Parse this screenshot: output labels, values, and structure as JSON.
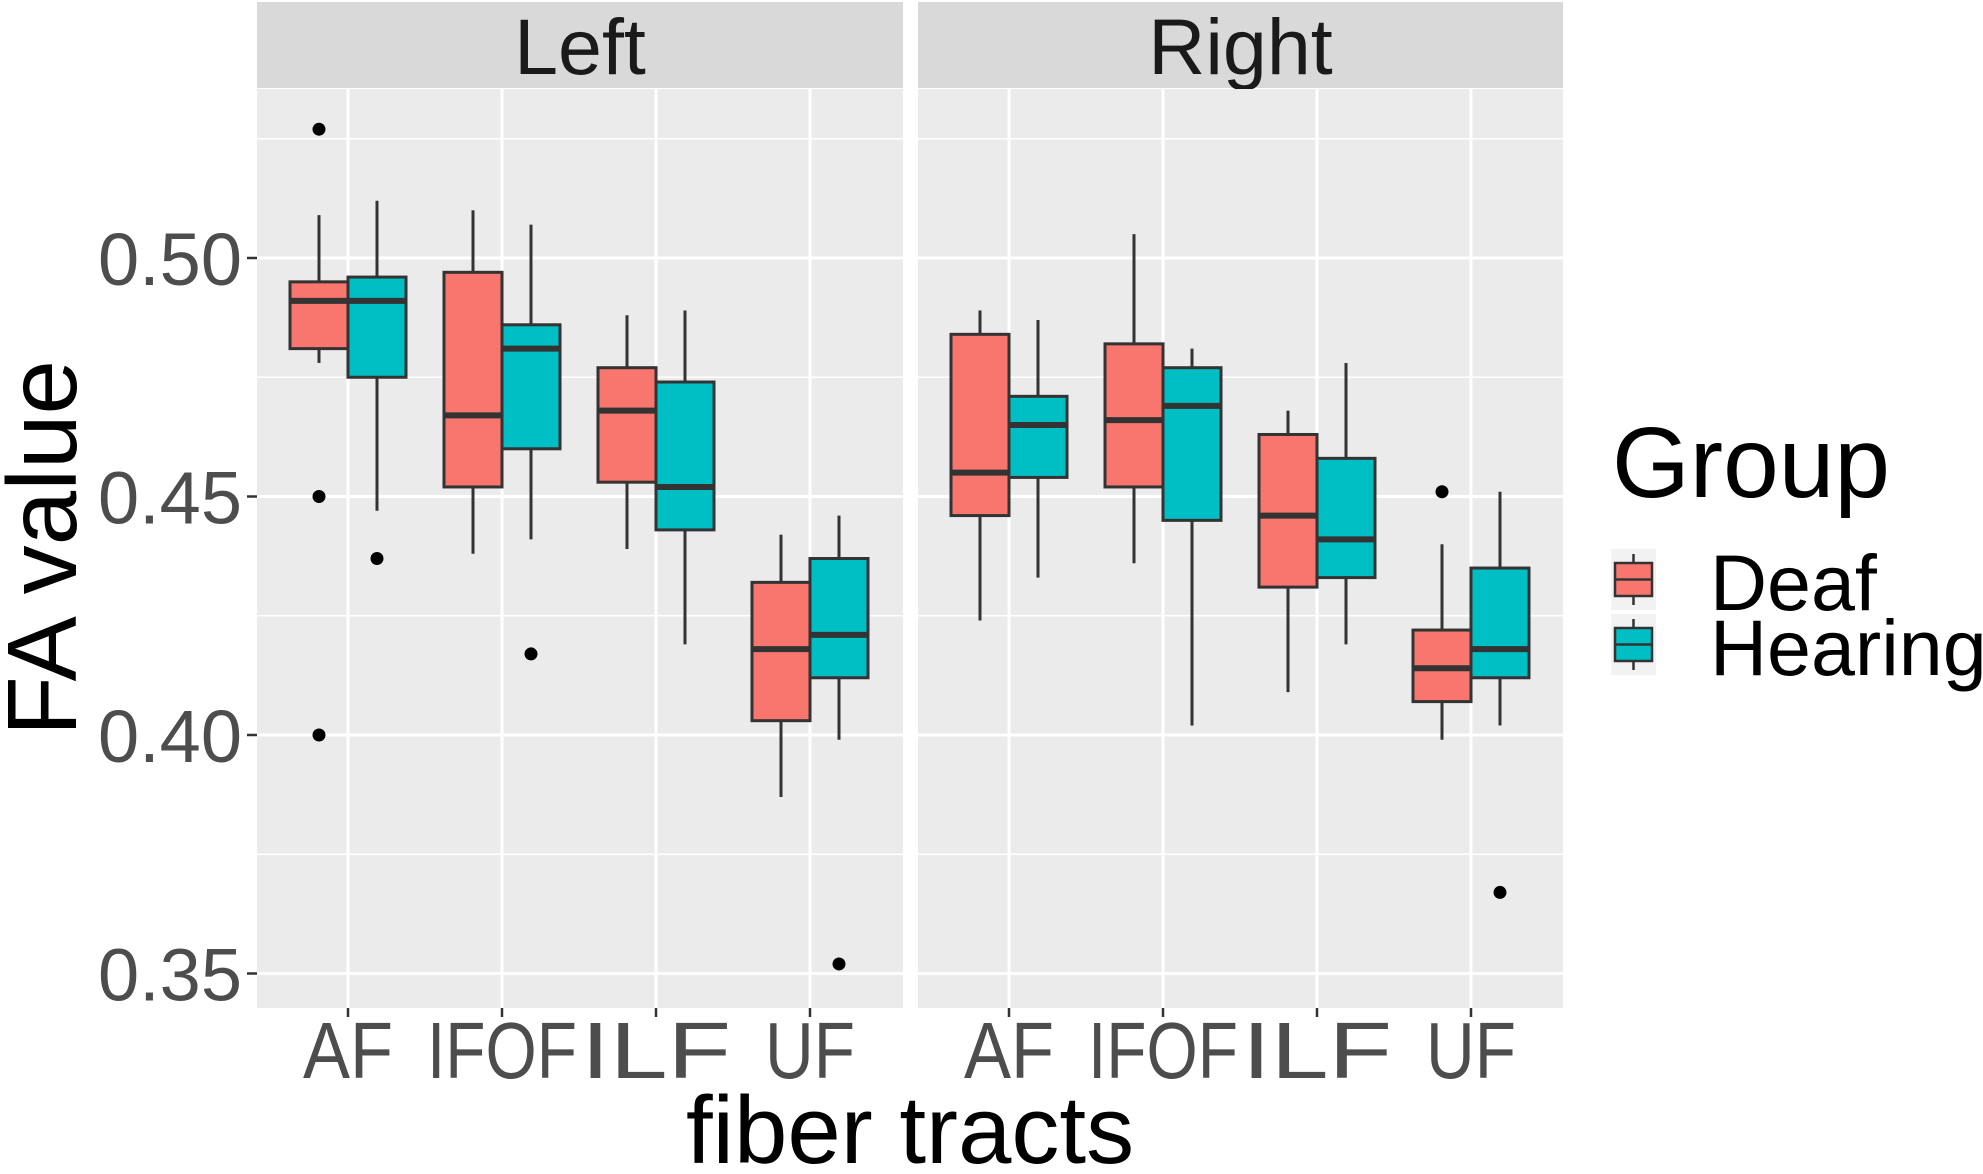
{
  "chart_data": {
    "type": "boxplot",
    "title": "",
    "xlabel": "fiber tracts",
    "ylabel": "FA value",
    "ylim": [
      0.3385,
      0.5345
    ],
    "yticks": [
      0.35,
      0.4,
      0.45,
      0.5
    ],
    "ytick_labels": [
      "0.35",
      "0.40",
      "0.45",
      "0.50"
    ],
    "minor_gridlines": [
      0.375,
      0.425,
      0.475,
      0.525
    ],
    "grid": true,
    "facets": [
      "Left",
      "Right"
    ],
    "categories": [
      "AF",
      "IFOF",
      "ILF",
      "UF"
    ],
    "legend": {
      "title": "Group",
      "position": "right",
      "entries": [
        {
          "name": "Deaf",
          "color": "#F8766D"
        },
        {
          "name": "Hearing",
          "color": "#00BFC4"
        }
      ]
    },
    "series": [
      {
        "facet": "Left",
        "name": "Deaf",
        "color": "#F8766D",
        "boxes": [
          {
            "category": "AF",
            "whisker_low": 0.478,
            "q1": 0.481,
            "median": 0.491,
            "q3": 0.495,
            "whisker_high": 0.509,
            "outliers": [
              0.527,
              0.45,
              0.4
            ]
          },
          {
            "category": "IFOF",
            "whisker_low": 0.438,
            "q1": 0.452,
            "median": 0.467,
            "q3": 0.497,
            "whisker_high": 0.51,
            "outliers": []
          },
          {
            "category": "ILF",
            "whisker_low": 0.439,
            "q1": 0.453,
            "median": 0.468,
            "q3": 0.477,
            "whisker_high": 0.488,
            "outliers": []
          },
          {
            "category": "UF",
            "whisker_low": 0.387,
            "q1": 0.403,
            "median": 0.418,
            "q3": 0.432,
            "whisker_high": 0.442,
            "outliers": []
          }
        ]
      },
      {
        "facet": "Left",
        "name": "Hearing",
        "color": "#00BFC4",
        "boxes": [
          {
            "category": "AF",
            "whisker_low": 0.447,
            "q1": 0.475,
            "median": 0.491,
            "q3": 0.496,
            "whisker_high": 0.512,
            "outliers": [
              0.437
            ]
          },
          {
            "category": "IFOF",
            "whisker_low": 0.441,
            "q1": 0.46,
            "median": 0.481,
            "q3": 0.486,
            "whisker_high": 0.507,
            "outliers": [
              0.417
            ]
          },
          {
            "category": "ILF",
            "whisker_low": 0.419,
            "q1": 0.443,
            "median": 0.452,
            "q3": 0.474,
            "whisker_high": 0.489,
            "outliers": []
          },
          {
            "category": "UF",
            "whisker_low": 0.399,
            "q1": 0.412,
            "median": 0.421,
            "q3": 0.437,
            "whisker_high": 0.446,
            "outliers": [
              0.352
            ]
          }
        ]
      },
      {
        "facet": "Right",
        "name": "Deaf",
        "color": "#F8766D",
        "boxes": [
          {
            "category": "AF",
            "whisker_low": 0.424,
            "q1": 0.446,
            "median": 0.455,
            "q3": 0.484,
            "whisker_high": 0.489,
            "outliers": []
          },
          {
            "category": "IFOF",
            "whisker_low": 0.436,
            "q1": 0.452,
            "median": 0.466,
            "q3": 0.482,
            "whisker_high": 0.505,
            "outliers": []
          },
          {
            "category": "ILF",
            "whisker_low": 0.409,
            "q1": 0.431,
            "median": 0.446,
            "q3": 0.463,
            "whisker_high": 0.468,
            "outliers": []
          },
          {
            "category": "UF",
            "whisker_low": 0.399,
            "q1": 0.407,
            "median": 0.414,
            "q3": 0.422,
            "whisker_high": 0.44,
            "outliers": [
              0.451
            ]
          }
        ]
      },
      {
        "facet": "Right",
        "name": "Hearing",
        "color": "#00BFC4",
        "boxes": [
          {
            "category": "AF",
            "whisker_low": 0.433,
            "q1": 0.454,
            "median": 0.465,
            "q3": 0.471,
            "whisker_high": 0.487,
            "outliers": []
          },
          {
            "category": "IFOF",
            "whisker_low": 0.402,
            "q1": 0.445,
            "median": 0.469,
            "q3": 0.477,
            "whisker_high": 0.481,
            "outliers": []
          },
          {
            "category": "ILF",
            "whisker_low": 0.419,
            "q1": 0.433,
            "median": 0.441,
            "q3": 0.458,
            "whisker_high": 0.478,
            "outliers": []
          },
          {
            "category": "UF",
            "whisker_low": 0.402,
            "q1": 0.412,
            "median": 0.418,
            "q3": 0.435,
            "whisker_high": 0.451,
            "outliers": [
              0.367
            ]
          }
        ]
      }
    ]
  },
  "colors": {
    "panel_bg": "#EBEBEB",
    "strip_bg": "#D9D9D9",
    "grid": "#FFFFFF",
    "box_line": "#333333",
    "axis_text": "#4D4D4D",
    "title_text": "#000000",
    "strip_text": "#1A1A1A",
    "legend_key_bg": "#F2F2F2"
  }
}
